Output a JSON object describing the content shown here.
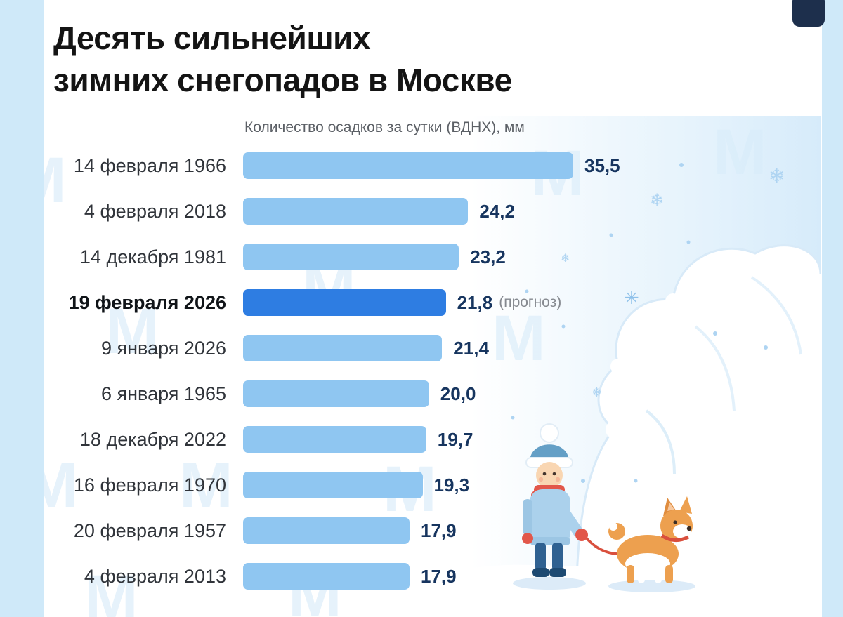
{
  "header": {
    "title_line1": "Десять сильнейших",
    "title_line2": "зимних снегопадов в Москве"
  },
  "watermark": {
    "glyph": "М"
  },
  "chart_data": {
    "type": "bar",
    "orientation": "horizontal",
    "title": "Десять сильнейших зимних снегопадов в Москве",
    "axis_title": "Количество осадков за сутки (ВДНХ), мм",
    "unit": "мм",
    "value_range": [
      0,
      35.5
    ],
    "grid": false,
    "legend": false,
    "categories": [
      "14 февраля 1966",
      "4 февраля 2018",
      "14 декабря 1981",
      "19 февраля 2026",
      "9 января 2026",
      "6 января 1965",
      "18 декабря 2022",
      "16 февраля 1970",
      "20 февраля 1957",
      "4 февраля 2013"
    ],
    "values": [
      35.5,
      24.2,
      23.2,
      21.8,
      21.4,
      20.0,
      19.7,
      19.3,
      17.9,
      17.9
    ],
    "rows": [
      {
        "label": "14 февраля 1966",
        "value": 35.5,
        "display": "35,5",
        "highlight": false,
        "note": ""
      },
      {
        "label": "4 февраля 2018",
        "value": 24.2,
        "display": "24,2",
        "highlight": false,
        "note": ""
      },
      {
        "label": "14 декабря 1981",
        "value": 23.2,
        "display": "23,2",
        "highlight": false,
        "note": ""
      },
      {
        "label": "19 февраля 2026",
        "value": 21.8,
        "display": "21,8",
        "highlight": true,
        "note": "(прогноз)"
      },
      {
        "label": "9 января 2026",
        "value": 21.4,
        "display": "21,4",
        "highlight": false,
        "note": ""
      },
      {
        "label": "6 января 1965",
        "value": 20.0,
        "display": "20,0",
        "highlight": false,
        "note": ""
      },
      {
        "label": "18 декабря 2022",
        "value": 19.7,
        "display": "19,7",
        "highlight": false,
        "note": ""
      },
      {
        "label": "16 февраля 1970",
        "value": 19.3,
        "display": "19,3",
        "highlight": false,
        "note": ""
      },
      {
        "label": "20 февраля 1957",
        "value": 17.9,
        "display": "17,9",
        "highlight": false,
        "note": ""
      },
      {
        "label": "4 февраля 2013",
        "value": 17.9,
        "display": "17,9",
        "highlight": false,
        "note": ""
      }
    ],
    "colors": {
      "bar": "#8fc6f1",
      "highlight_bar": "#2e7de2",
      "value_text": "#17355f",
      "label_text": "#30343a",
      "note_text": "#85898f",
      "frame": "#cfe9f9"
    },
    "illustration_elements": [
      "snowdrift",
      "snowflakes",
      "child-in-winter-clothes",
      "corgi-dog",
      "leash"
    ]
  }
}
